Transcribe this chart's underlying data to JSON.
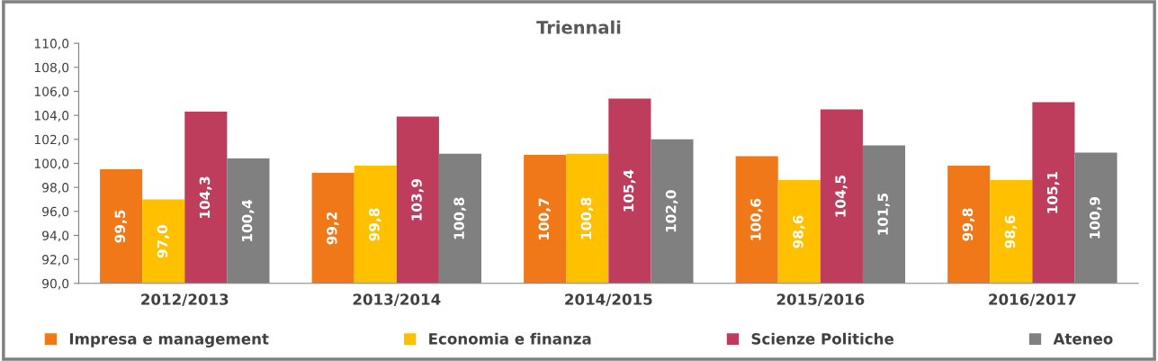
{
  "chart_data": {
    "type": "bar",
    "title": "Triennali",
    "categories": [
      "2012/2013",
      "2013/2014",
      "2014/2015",
      "2015/2016",
      "2016/2017"
    ],
    "series": [
      {
        "name": "Impresa e management",
        "color": "#f07818",
        "values": [
          99.5,
          99.2,
          100.7,
          100.6,
          99.8
        ],
        "value_labels": [
          "99,5",
          "99,2",
          "100,7",
          "100,6",
          "99,8"
        ]
      },
      {
        "name": "Economia e finanza",
        "color": "#ffc000",
        "values": [
          97.0,
          99.8,
          100.8,
          98.6,
          98.6
        ],
        "value_labels": [
          "97,0",
          "99,8",
          "100,8",
          "98,6",
          "98,6"
        ]
      },
      {
        "name": "Scienze Politiche",
        "color": "#be3c5c",
        "values": [
          104.3,
          103.9,
          105.4,
          104.5,
          105.1
        ],
        "value_labels": [
          "104,3",
          "103,9",
          "105,4",
          "104,5",
          "105,1"
        ]
      },
      {
        "name": "Ateneo",
        "color": "#808080",
        "values": [
          100.4,
          100.8,
          102.0,
          101.5,
          100.9
        ],
        "value_labels": [
          "100,4",
          "100,8",
          "102,0",
          "101,5",
          "100,9"
        ]
      }
    ],
    "ylim": [
      90,
      110
    ],
    "yticks": [
      {
        "value": 90,
        "label": "90,0"
      },
      {
        "value": 92,
        "label": "92,0"
      },
      {
        "value": 94,
        "label": "94,0"
      },
      {
        "value": 96,
        "label": "96,0"
      },
      {
        "value": 98,
        "label": "98,0"
      },
      {
        "value": 100,
        "label": "100,0"
      },
      {
        "value": 102,
        "label": "102,0"
      },
      {
        "value": 104,
        "label": "104,0"
      },
      {
        "value": 106,
        "label": "106,0"
      },
      {
        "value": 108,
        "label": "108,0"
      },
      {
        "value": 110,
        "label": "110,0"
      }
    ],
    "grid": false,
    "legend": "bottom"
  }
}
